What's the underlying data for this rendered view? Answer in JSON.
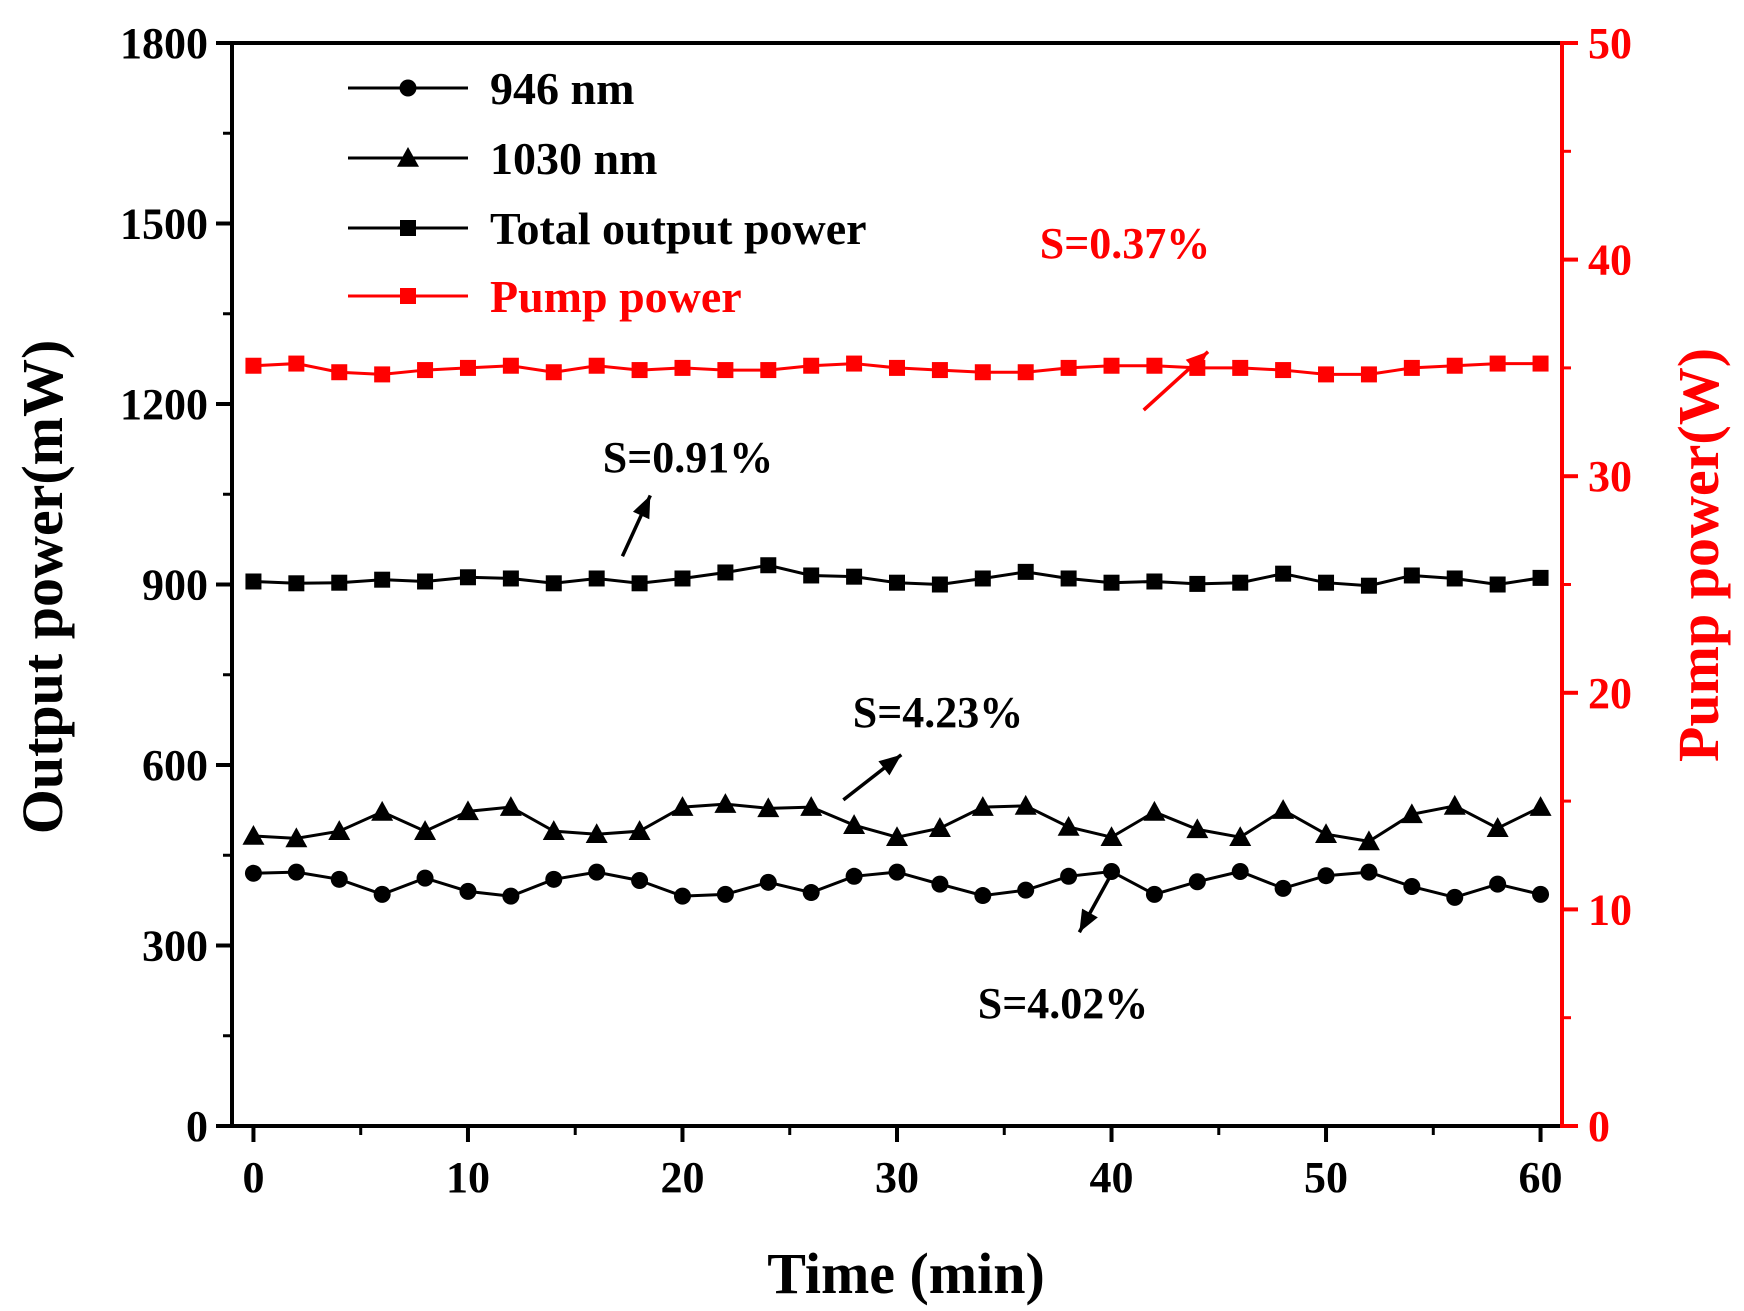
{
  "chart_data": {
    "type": "line",
    "xlabel": "Time (min)",
    "ylabel_left": "Output power(mW)",
    "ylabel_right": "Pump power(W)",
    "xlim": [
      -1,
      61
    ],
    "ylim_left": [
      0,
      1800
    ],
    "ylim_right": [
      0,
      50
    ],
    "xticks": [
      0,
      10,
      20,
      30,
      40,
      50,
      60
    ],
    "yticks_left": [
      0,
      300,
      600,
      900,
      1200,
      1500,
      1800
    ],
    "yticks_right": [
      0,
      10,
      20,
      30,
      40,
      50
    ],
    "x": [
      0,
      2,
      4,
      6,
      8,
      10,
      12,
      14,
      16,
      18,
      20,
      22,
      24,
      26,
      28,
      30,
      32,
      34,
      36,
      38,
      40,
      42,
      44,
      46,
      48,
      50,
      52,
      54,
      56,
      58,
      60
    ],
    "series": [
      {
        "name": "946 nm",
        "axis": "left",
        "marker": "circle",
        "color": "#000000",
        "values": [
          420,
          422,
          410,
          385,
          412,
          390,
          382,
          410,
          422,
          408,
          382,
          385,
          405,
          388,
          415,
          422,
          402,
          383,
          392,
          415,
          423,
          385,
          406,
          423,
          395,
          416,
          422,
          398,
          380,
          402,
          385
        ]
      },
      {
        "name": "1030 nm",
        "axis": "left",
        "marker": "triangle",
        "color": "#000000",
        "values": [
          482,
          478,
          490,
          522,
          490,
          523,
          530,
          490,
          485,
          490,
          530,
          535,
          528,
          530,
          500,
          480,
          495,
          530,
          532,
          497,
          480,
          522,
          493,
          480,
          525,
          485,
          473,
          518,
          532,
          495,
          530
        ]
      },
      {
        "name": "Total output power",
        "axis": "left",
        "marker": "square",
        "color": "#000000",
        "values": [
          905,
          902,
          903,
          908,
          905,
          912,
          910,
          902,
          910,
          902,
          910,
          920,
          932,
          915,
          913,
          903,
          900,
          910,
          921,
          910,
          903,
          905,
          901,
          903,
          918,
          903,
          898,
          915,
          910,
          900,
          911
        ]
      },
      {
        "name": "Pump power",
        "axis": "right",
        "marker": "square",
        "color": "#ff0000",
        "values": [
          35.1,
          35.2,
          34.8,
          34.7,
          34.9,
          35.0,
          35.1,
          34.8,
          35.1,
          34.9,
          35.0,
          34.9,
          34.9,
          35.1,
          35.2,
          35.0,
          34.9,
          34.8,
          34.8,
          35.0,
          35.1,
          35.1,
          35.0,
          35.0,
          34.9,
          34.7,
          34.7,
          35.0,
          35.1,
          35.2,
          35.2
        ]
      }
    ],
    "annotations": [
      {
        "text": "S=0.37%",
        "color": "#ff0000",
        "arrow_from": [
          41.5,
          1190
        ],
        "arrow_to": [
          44.5,
          1287
        ]
      },
      {
        "text": "S=0.91%",
        "color": "#000000",
        "arrow_from": [
          17.2,
          947
        ],
        "arrow_to": [
          18.5,
          1048
        ]
      },
      {
        "text": "S=4.23%",
        "color": "#000000",
        "arrow_from": [
          27.5,
          542
        ],
        "arrow_to": [
          30.2,
          617
        ]
      },
      {
        "text": "S=4.02%",
        "color": "#000000",
        "arrow_from": [
          40.2,
          432
        ],
        "arrow_to": [
          38.5,
          322
        ]
      }
    ],
    "legend_position": "top-left"
  }
}
